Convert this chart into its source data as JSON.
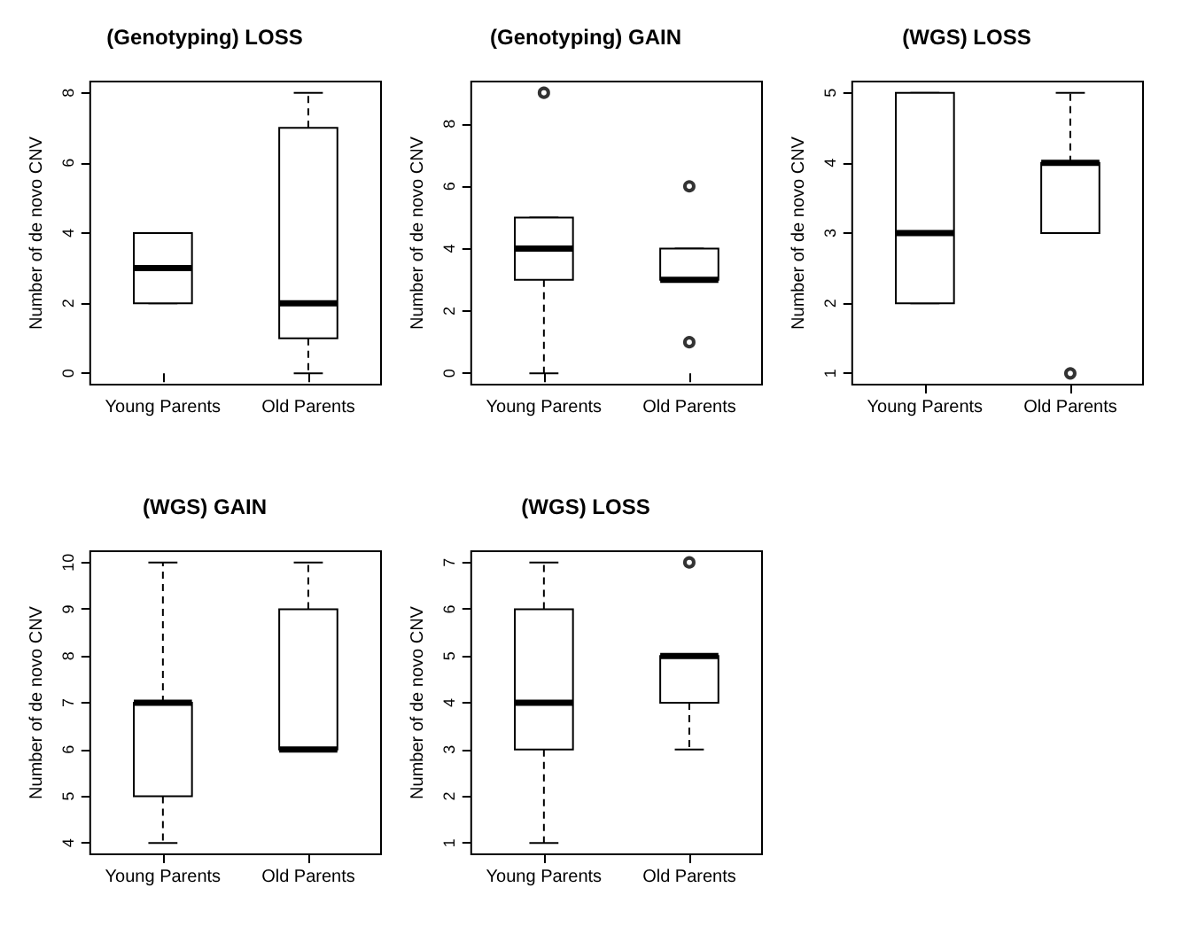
{
  "chart_data": [
    {
      "type": "box",
      "title": "(Genotyping) LOSS",
      "ylabel": "Number of de novo CNV",
      "categories": [
        "Young Parents",
        "Old Parents"
      ],
      "boxes": [
        {
          "low": 2,
          "q1": 2,
          "median": 3,
          "q3": 4,
          "high": 4
        },
        {
          "low": 0,
          "q1": 1,
          "median": 2,
          "q3": 7,
          "high": 8
        }
      ],
      "ylim": [
        -0.32,
        8.32
      ],
      "yticks": [
        0,
        2,
        4,
        6,
        8
      ],
      "grid": false
    },
    {
      "type": "box",
      "title": "(Genotyping) GAIN",
      "ylabel": "Number of de novo CNV",
      "categories": [
        "Young Parents",
        "Old Parents"
      ],
      "boxes": [
        {
          "low": 0,
          "q1": 3,
          "median": 4,
          "q3": 5,
          "high": 5,
          "outliers": [
            9
          ]
        },
        {
          "low": 3,
          "q1": 3,
          "median": 3,
          "q3": 4,
          "high": 4,
          "outliers": [
            6,
            1
          ]
        }
      ],
      "ylim": [
        -0.36,
        9.36
      ],
      "yticks": [
        0,
        2,
        4,
        6,
        8
      ],
      "grid": false
    },
    {
      "type": "box",
      "title": "(WGS) LOSS",
      "ylabel": "Number of de novo CNV",
      "categories": [
        "Young Parents",
        "Old Parents"
      ],
      "boxes": [
        {
          "low": 2,
          "q1": 2,
          "median": 3,
          "q3": 5,
          "high": 5
        },
        {
          "low": 3,
          "q1": 3,
          "median": 4,
          "q3": 4,
          "high": 5,
          "outliers": [
            1
          ]
        }
      ],
      "ylim": [
        0.84,
        5.16
      ],
      "yticks": [
        1,
        2,
        3,
        4,
        5
      ],
      "grid": false
    },
    {
      "type": "box",
      "title": "(WGS) GAIN",
      "ylabel": "Number of de novo CNV",
      "categories": [
        "Young Parents",
        "Old Parents"
      ],
      "boxes": [
        {
          "low": 4,
          "q1": 5,
          "median": 7,
          "q3": 7,
          "high": 10
        },
        {
          "low": 6,
          "q1": 6,
          "median": 6,
          "q3": 9,
          "high": 10
        }
      ],
      "ylim": [
        3.76,
        10.24
      ],
      "yticks": [
        4,
        5,
        6,
        7,
        8,
        9,
        10
      ],
      "grid": false
    },
    {
      "type": "box",
      "title": "(WGS) LOSS",
      "ylabel": "Number of de novo CNV",
      "categories": [
        "Young Parents",
        "Old Parents"
      ],
      "boxes": [
        {
          "low": 1,
          "q1": 3,
          "median": 4,
          "q3": 6,
          "high": 7
        },
        {
          "low": 3,
          "q1": 4,
          "median": 5,
          "q3": 5,
          "high": 5,
          "outliers": [
            7
          ]
        }
      ],
      "ylim": [
        0.76,
        7.24
      ],
      "yticks": [
        1,
        2,
        3,
        4,
        5,
        6,
        7
      ],
      "grid": false
    }
  ]
}
